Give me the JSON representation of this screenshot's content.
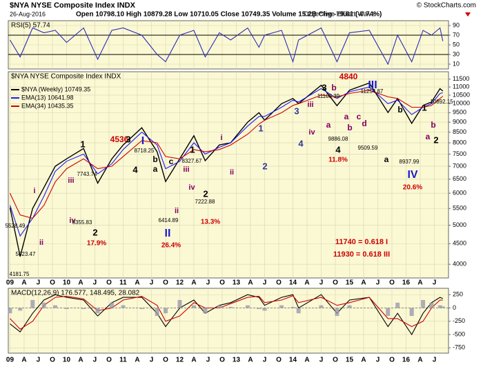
{
  "chart_data": [
    {
      "type": "line",
      "title": "RSI(5) 57.74",
      "ylim": [
        0,
        100
      ],
      "yticks": [
        10,
        30,
        50,
        70,
        90
      ],
      "ref_lines": [
        30,
        70
      ],
      "x": [
        2009.0,
        2009.18,
        2009.4,
        2009.6,
        2009.8,
        2010.0,
        2010.3,
        2010.55,
        2010.8,
        2011.0,
        2011.33,
        2011.6,
        2011.75,
        2012.0,
        2012.25,
        2012.45,
        2012.7,
        2012.9,
        2013.2,
        2013.4,
        2013.5,
        2013.8,
        2014.0,
        2014.1,
        2014.5,
        2014.78,
        2015.0,
        2015.35,
        2015.68,
        2015.85,
        2016.1,
        2016.3,
        2016.45,
        2016.6,
        2016.65
      ],
      "series": [
        {
          "color": "#2a2ab8",
          "values": [
            60,
            25,
            85,
            75,
            80,
            55,
            85,
            20,
            80,
            85,
            70,
            30,
            15,
            70,
            80,
            25,
            75,
            60,
            85,
            45,
            70,
            80,
            15,
            60,
            85,
            15,
            75,
            80,
            10,
            70,
            15,
            80,
            70,
            85,
            57.74
          ]
        }
      ]
    },
    {
      "type": "line",
      "title": "$NYA NYSE Composite Index INDX",
      "date": "26-Aug-2016",
      "quote": "Open 10798.10  High 10879.28  Low 10710.05  Close 10749.35  Volume 15.2B  Chg -79.81 (-0.74%)",
      "watermark": "© StockCharts.com",
      "caption": "Objective Elliott Wave",
      "log_scale": true,
      "ylim": [
        3700,
        12000
      ],
      "yticks": [
        4000,
        4500,
        5000,
        5500,
        6000,
        6500,
        7000,
        7500,
        8000,
        8500,
        9000,
        9500,
        10000,
        10500,
        11000,
        11500
      ],
      "xlim": [
        2008.97,
        2016.75
      ],
      "xticks": [
        {
          "value": 2009,
          "label": "09"
        },
        {
          "value": 2009.25,
          "label": "A"
        },
        {
          "value": 2009.5,
          "label": "J"
        },
        {
          "value": 2009.75,
          "label": "O"
        },
        {
          "value": 2010,
          "label": "10"
        },
        {
          "value": 2010.25,
          "label": "A"
        },
        {
          "value": 2010.5,
          "label": "J"
        },
        {
          "value": 2010.75,
          "label": "O"
        },
        {
          "value": 2011,
          "label": "11"
        },
        {
          "value": 2011.25,
          "label": "A"
        },
        {
          "value": 2011.5,
          "label": "J"
        },
        {
          "value": 2011.75,
          "label": "O"
        },
        {
          "value": 2012,
          "label": "12"
        },
        {
          "value": 2012.25,
          "label": "A"
        },
        {
          "value": 2012.5,
          "label": "J"
        },
        {
          "value": 2012.75,
          "label": "O"
        },
        {
          "value": 2013,
          "label": "13"
        },
        {
          "value": 2013.25,
          "label": "A"
        },
        {
          "value": 2013.5,
          "label": "J"
        },
        {
          "value": 2013.75,
          "label": "O"
        },
        {
          "value": 2014,
          "label": "14"
        },
        {
          "value": 2014.25,
          "label": "A"
        },
        {
          "value": 2014.5,
          "label": "J"
        },
        {
          "value": 2014.75,
          "label": "O"
        },
        {
          "value": 2015,
          "label": "15"
        },
        {
          "value": 2015.25,
          "label": "A"
        },
        {
          "value": 2015.5,
          "label": "J"
        },
        {
          "value": 2015.75,
          "label": "O"
        },
        {
          "value": 2016,
          "label": "16"
        },
        {
          "value": 2016.25,
          "label": "A"
        },
        {
          "value": 2016.5,
          "label": "J"
        }
      ],
      "x": [
        2009.0,
        2009.18,
        2009.4,
        2009.6,
        2009.8,
        2010.0,
        2010.3,
        2010.55,
        2010.8,
        2011.0,
        2011.33,
        2011.6,
        2011.75,
        2012.0,
        2012.25,
        2012.45,
        2012.7,
        2012.9,
        2013.2,
        2013.4,
        2013.5,
        2013.8,
        2014.0,
        2014.1,
        2014.5,
        2014.78,
        2015.0,
        2015.35,
        2015.68,
        2015.85,
        2016.1,
        2016.3,
        2016.45,
        2016.6,
        2016.65
      ],
      "series": [
        {
          "name": "$NYA (Weekly) 10749.35",
          "color": "#000000",
          "values": [
            5528,
            4182,
            5500,
            6200,
            7000,
            7300,
            7744,
            6356,
            7300,
            7900,
            8718,
            7600,
            6415,
            7300,
            8328,
            7223,
            7900,
            8000,
            9000,
            9500,
            9100,
            10000,
            10300,
            10000,
            11108,
            9886,
            10800,
            11255,
            9510,
            10300,
            8938,
            9900,
            10100,
            10892,
            10749
          ]
        },
        {
          "name": "EMA(13) 10641.98",
          "color": "#1a1aff",
          "values": [
            5600,
            4700,
            5200,
            5900,
            6800,
            7200,
            7500,
            6700,
            7100,
            7700,
            8500,
            7900,
            6900,
            7200,
            8000,
            7500,
            7800,
            8000,
            8800,
            9300,
            9300,
            9800,
            10200,
            10100,
            10900,
            10300,
            10700,
            11000,
            10000,
            10200,
            9400,
            9800,
            10000,
            10600,
            10642
          ]
        },
        {
          "name": "EMA(34) 10435.35",
          "color": "#cc0000",
          "values": [
            6000,
            5300,
            5200,
            5600,
            6400,
            6900,
            7300,
            6900,
            7000,
            7400,
            8100,
            8000,
            7400,
            7300,
            7700,
            7600,
            7700,
            7900,
            8400,
            8900,
            9100,
            9500,
            9900,
            10000,
            10500,
            10400,
            10600,
            10800,
            10400,
            10300,
            9800,
            9800,
            9900,
            10300,
            10435
          ]
        }
      ],
      "annotations": [
        {
          "text": "4840",
          "color": "#cc0000"
        },
        {
          "text": "III",
          "color": "#1a1acc"
        },
        {
          "text": "3",
          "color": "#000000"
        },
        {
          "text": "b",
          "color": "#800060"
        },
        {
          "text": "iii",
          "color": "#800060"
        },
        {
          "text": "3",
          "color": "#2a3a9a"
        },
        {
          "text": "iv",
          "color": "#800060"
        },
        {
          "text": "4",
          "color": "#2a3a9a"
        },
        {
          "text": "a",
          "color": "#800060"
        },
        {
          "text": "a",
          "color": "#800060"
        },
        {
          "text": "b",
          "color": "#800060"
        },
        {
          "text": "c",
          "color": "#800060"
        },
        {
          "text": "d",
          "color": "#800060"
        },
        {
          "text": "11108.39",
          "color": "#000000"
        },
        {
          "text": "11254.87",
          "color": "#000000"
        },
        {
          "text": "9886.08",
          "color": "#000000"
        },
        {
          "text": "4",
          "color": "#000000"
        },
        {
          "text": "11.8%",
          "color": "#cc0000"
        },
        {
          "text": "b",
          "color": "#000000"
        },
        {
          "text": "9509.59",
          "color": "#000000"
        },
        {
          "text": "a",
          "color": "#000000"
        },
        {
          "text": "8937.99",
          "color": "#000000"
        },
        {
          "text": "IV",
          "color": "#1a1acc"
        },
        {
          "text": "20.6%",
          "color": "#cc0000"
        },
        {
          "text": "1",
          "color": "#000000"
        },
        {
          "text": "10892.15",
          "color": "#000000"
        },
        {
          "text": "b",
          "color": "#800060"
        },
        {
          "text": "a",
          "color": "#800060"
        },
        {
          "text": "2",
          "color": "#000000"
        },
        {
          "text": "1",
          "color": "#2a3a9a"
        },
        {
          "text": "2",
          "color": "#2a3a9a"
        },
        {
          "text": "i",
          "color": "#800060"
        },
        {
          "text": "ii",
          "color": "#800060"
        },
        {
          "text": "1",
          "color": "#000000"
        },
        {
          "text": "iii",
          "color": "#800060"
        },
        {
          "text": "iv",
          "color": "#800060"
        },
        {
          "text": "ii",
          "color": "#800060"
        },
        {
          "text": "2",
          "color": "#000000"
        },
        {
          "text": "13.3%",
          "color": "#cc0000"
        },
        {
          "text": "7222.88",
          "color": "#000000"
        },
        {
          "text": "8327.67",
          "color": "#000000"
        },
        {
          "text": "4536",
          "color": "#cc0000"
        },
        {
          "text": "I",
          "color": "#1a1acc"
        },
        {
          "text": "3",
          "color": "#000000"
        },
        {
          "text": "8718.25",
          "color": "#000000"
        },
        {
          "text": "b",
          "color": "#000000"
        },
        {
          "text": "c",
          "color": "#000000"
        },
        {
          "text": "4",
          "color": "#000000"
        },
        {
          "text": "a",
          "color": "#000000"
        },
        {
          "text": "6414.89",
          "color": "#000000"
        },
        {
          "text": "II",
          "color": "#1a1acc"
        },
        {
          "text": "26.4%",
          "color": "#cc0000"
        },
        {
          "text": "1",
          "color": "#000000"
        },
        {
          "text": "7743.74",
          "color": "#000000"
        },
        {
          "text": "iii",
          "color": "#800060"
        },
        {
          "text": "iv",
          "color": "#800060"
        },
        {
          "text": "6355.83",
          "color": "#000000"
        },
        {
          "text": "2",
          "color": "#000000"
        },
        {
          "text": "17.9%",
          "color": "#cc0000"
        },
        {
          "text": "i",
          "color": "#800060"
        },
        {
          "text": "ii",
          "color": "#800060"
        },
        {
          "text": "5528.49",
          "color": "#000000"
        },
        {
          "text": "5023.47",
          "color": "#000000"
        },
        {
          "text": "4181.75",
          "color": "#000000"
        },
        {
          "text": "11740 = 0.618 I",
          "color": "#cc0000"
        },
        {
          "text": "11930 = 0.618 III",
          "color": "#cc0000"
        }
      ]
    },
    {
      "type": "line",
      "title": "MACD(12,26,9) 176.577, 148.495, 28.082",
      "ylim": [
        -850,
        370
      ],
      "yticks": [
        -750,
        -500,
        -250,
        0,
        250
      ],
      "x": [
        2009.0,
        2009.18,
        2009.4,
        2009.6,
        2009.8,
        2010.0,
        2010.3,
        2010.55,
        2010.8,
        2011.0,
        2011.33,
        2011.6,
        2011.75,
        2012.0,
        2012.25,
        2012.45,
        2012.7,
        2012.9,
        2013.2,
        2013.4,
        2013.5,
        2013.8,
        2014.0,
        2014.1,
        2014.5,
        2014.78,
        2015.0,
        2015.35,
        2015.68,
        2015.85,
        2016.1,
        2016.3,
        2016.45,
        2016.6,
        2016.65
      ],
      "series": [
        {
          "color": "#000000",
          "values": [
            -300,
            -450,
            -100,
            150,
            250,
            200,
            150,
            -150,
            100,
            200,
            200,
            -100,
            -350,
            0,
            150,
            -100,
            50,
            100,
            250,
            200,
            50,
            200,
            250,
            0,
            250,
            -100,
            150,
            200,
            -350,
            -100,
            -500,
            -100,
            100,
            200,
            176.577
          ]
        },
        {
          "color": "#cc0000",
          "values": [
            -200,
            -400,
            -250,
            50,
            200,
            220,
            170,
            -50,
            0,
            150,
            220,
            50,
            -250,
            -150,
            100,
            0,
            0,
            80,
            200,
            220,
            100,
            150,
            230,
            100,
            200,
            50,
            100,
            200,
            -200,
            -200,
            -350,
            -250,
            0,
            150,
            148.495
          ]
        },
        {
          "color": "#9a9aaa",
          "style": "bar",
          "values": [
            -100,
            -50,
            150,
            100,
            50,
            -20,
            -20,
            -100,
            100,
            50,
            -20,
            -150,
            -100,
            150,
            50,
            -100,
            50,
            20,
            50,
            -20,
            -50,
            50,
            20,
            -100,
            50,
            -150,
            50,
            0,
            -150,
            100,
            -150,
            150,
            100,
            50,
            28.082
          ]
        }
      ]
    }
  ]
}
